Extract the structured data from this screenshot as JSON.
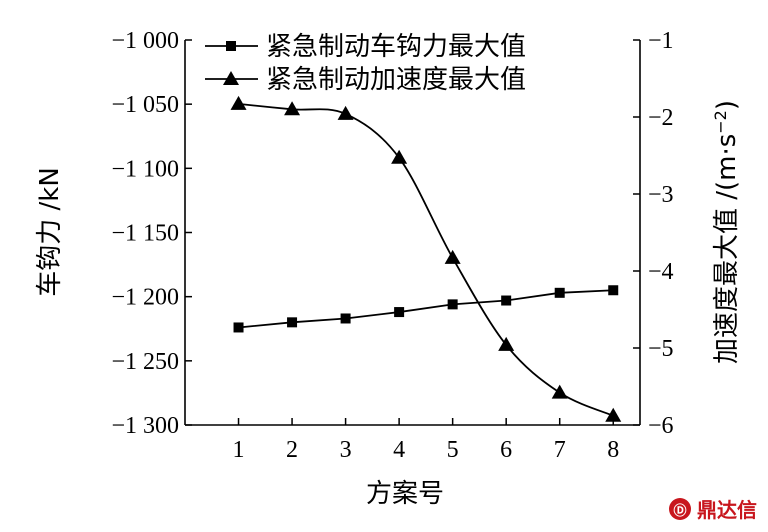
{
  "chart_data": {
    "type": "line",
    "x": [
      1,
      2,
      3,
      4,
      5,
      6,
      7,
      8
    ],
    "xticks": [
      "1",
      "2",
      "3",
      "4",
      "5",
      "6",
      "7",
      "8"
    ],
    "xlabel": "方案号",
    "xlim": [
      0,
      8.5
    ],
    "left_axis": {
      "label": "车钩力 /kN",
      "ylim": [
        -1300,
        -1000
      ],
      "ticks": [
        -1000,
        -1050,
        -1100,
        -1150,
        -1200,
        -1250,
        -1300
      ],
      "tick_labels": [
        "−1 000",
        "−1 050",
        "−1 100",
        "−1 150",
        "−1 200",
        "−1 250",
        "−1 300"
      ]
    },
    "right_axis": {
      "label": "加速度最大值 /(m·s",
      "label_sup": "−2",
      "label_close": ")",
      "ylim": [
        -6,
        -1
      ],
      "ticks": [
        -1,
        -2,
        -3,
        -4,
        -5,
        -6
      ],
      "tick_labels": [
        "−1",
        "−2",
        "−3",
        "−4",
        "−5",
        "−6"
      ]
    },
    "series": [
      {
        "name": "紧急制动车钩力最大值",
        "axis": "left",
        "marker": "square",
        "values": [
          -1224,
          -1220,
          -1217,
          -1212,
          -1206,
          -1203,
          -1197,
          -1195
        ]
      },
      {
        "name": "紧急制动加速度最大值",
        "axis": "right",
        "marker": "triangle",
        "values": [
          -1.83,
          -1.9,
          -1.96,
          -2.53,
          -3.83,
          -4.96,
          -5.58,
          -5.88
        ]
      }
    ],
    "legend_position": "top"
  },
  "watermark": "鼎达信",
  "colors": {
    "line": "#000000",
    "watermark": "#c8161d"
  }
}
